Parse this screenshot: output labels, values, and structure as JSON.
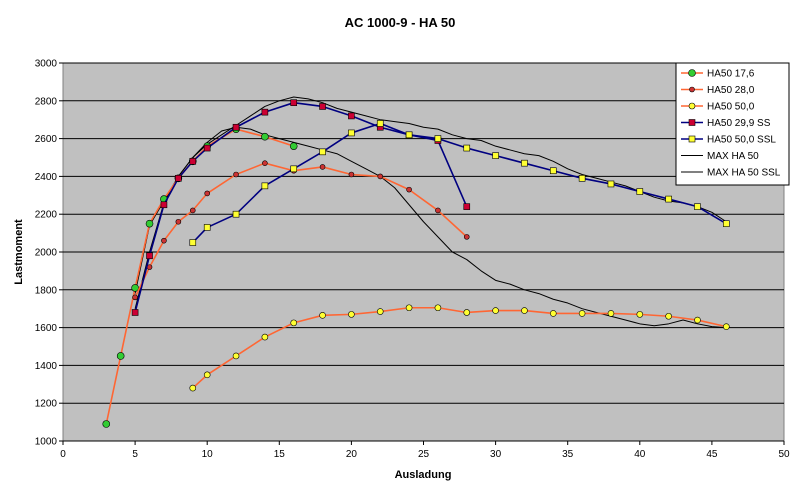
{
  "chart_data": {
    "type": "line",
    "title": "AC 1000-9 - HA 50",
    "xlabel": "Ausladung",
    "ylabel": "Lastmoment",
    "xlim": [
      0,
      50
    ],
    "ylim": [
      1000,
      3000
    ],
    "xticks": [
      0,
      5,
      10,
      15,
      20,
      25,
      30,
      35,
      40,
      45,
      50
    ],
    "yticks": [
      1000,
      1200,
      1400,
      1600,
      1800,
      2000,
      2200,
      2400,
      2600,
      2800,
      3000
    ],
    "grid": "horizontal",
    "legend_position": "top-right",
    "plot_background": "#c0c0c0",
    "series": [
      {
        "name": "HA50 17,6",
        "line_color": "#ff6633",
        "marker": "circle",
        "marker_color": "#33cc33",
        "marker_size": 7,
        "x": [
          3,
          4,
          5,
          6,
          7,
          8,
          9,
          10,
          12,
          14,
          16
        ],
        "y": [
          1090,
          1450,
          1810,
          2150,
          2280,
          2390,
          2480,
          2560,
          2650,
          2610,
          2560
        ]
      },
      {
        "name": "HA50 28,0",
        "line_color": "#ff6633",
        "marker": "circle",
        "marker_color": "#cc3333",
        "marker_size": 5,
        "x": [
          5,
          6,
          7,
          8,
          9,
          10,
          12,
          14,
          16,
          18,
          20,
          22,
          24,
          26,
          28
        ],
        "y": [
          1760,
          1920,
          2060,
          2160,
          2220,
          2310,
          2410,
          2470,
          2430,
          2450,
          2410,
          2400,
          2330,
          2220,
          2080
        ]
      },
      {
        "name": "HA50 50,0",
        "line_color": "#ff6633",
        "marker": "circle",
        "marker_color": "#ffff33",
        "marker_size": 6,
        "x": [
          9,
          10,
          12,
          14,
          16,
          18,
          20,
          22,
          24,
          26,
          28,
          30,
          32,
          34,
          36,
          38,
          40,
          42,
          44,
          46
        ],
        "y": [
          1280,
          1350,
          1450,
          1550,
          1625,
          1665,
          1670,
          1685,
          1705,
          1705,
          1680,
          1690,
          1690,
          1675,
          1675,
          1675,
          1670,
          1660,
          1640,
          1605
        ]
      },
      {
        "name": "HA50 29,9 SS",
        "line_color": "#000080",
        "marker": "square",
        "marker_color": "#cc0033",
        "marker_size": 6,
        "x": [
          5,
          6,
          7,
          8,
          9,
          10,
          12,
          14,
          16,
          18,
          20,
          22,
          24,
          26,
          28
        ],
        "y": [
          1680,
          1980,
          2250,
          2390,
          2480,
          2550,
          2660,
          2740,
          2790,
          2770,
          2720,
          2660,
          2620,
          2590,
          2240
        ]
      },
      {
        "name": "HA50 50,0 SSL",
        "line_color": "#000080",
        "marker": "square",
        "marker_color": "#ffff33",
        "marker_size": 6,
        "x": [
          9,
          10,
          12,
          14,
          16,
          18,
          20,
          22,
          24,
          26,
          28,
          30,
          32,
          34,
          36,
          38,
          40,
          42,
          44,
          46
        ],
        "y": [
          2050,
          2130,
          2200,
          2350,
          2440,
          2530,
          2630,
          2680,
          2620,
          2600,
          2550,
          2510,
          2470,
          2430,
          2390,
          2360,
          2320,
          2280,
          2240,
          2150
        ]
      },
      {
        "name": "MAX HA 50",
        "line_color": "#000000",
        "marker": "none",
        "x": [
          5,
          6,
          7,
          8,
          9,
          10,
          11,
          12,
          13,
          14,
          15,
          16,
          17,
          18,
          19,
          20,
          21,
          22,
          23,
          24,
          25,
          26,
          27,
          28,
          29,
          30,
          31,
          32,
          33,
          34,
          35,
          36,
          37,
          38,
          39,
          40,
          41,
          42,
          43,
          44,
          45,
          46
        ],
        "y": [
          1780,
          2140,
          2270,
          2400,
          2500,
          2580,
          2640,
          2660,
          2650,
          2620,
          2600,
          2580,
          2560,
          2540,
          2520,
          2480,
          2440,
          2400,
          2340,
          2250,
          2160,
          2080,
          2000,
          1960,
          1900,
          1850,
          1830,
          1800,
          1780,
          1750,
          1730,
          1700,
          1680,
          1660,
          1640,
          1620,
          1610,
          1620,
          1640,
          1620,
          1605,
          1600
        ]
      },
      {
        "name": "MAX HA 50 SSL",
        "line_color": "#000000",
        "marker": "none",
        "x": [
          5,
          6,
          7,
          8,
          9,
          10,
          11,
          12,
          13,
          14,
          15,
          16,
          17,
          18,
          19,
          20,
          21,
          22,
          23,
          24,
          25,
          26,
          27,
          28,
          29,
          30,
          31,
          32,
          33,
          34,
          35,
          36,
          37,
          38,
          39,
          40,
          41,
          42,
          43,
          44,
          45,
          46
        ],
        "y": [
          1700,
          2000,
          2260,
          2400,
          2500,
          2570,
          2620,
          2670,
          2720,
          2770,
          2800,
          2820,
          2810,
          2790,
          2760,
          2740,
          2720,
          2700,
          2690,
          2680,
          2660,
          2650,
          2620,
          2600,
          2590,
          2560,
          2540,
          2520,
          2510,
          2480,
          2440,
          2410,
          2390,
          2370,
          2350,
          2320,
          2290,
          2270,
          2260,
          2240,
          2210,
          2160
        ]
      }
    ]
  }
}
